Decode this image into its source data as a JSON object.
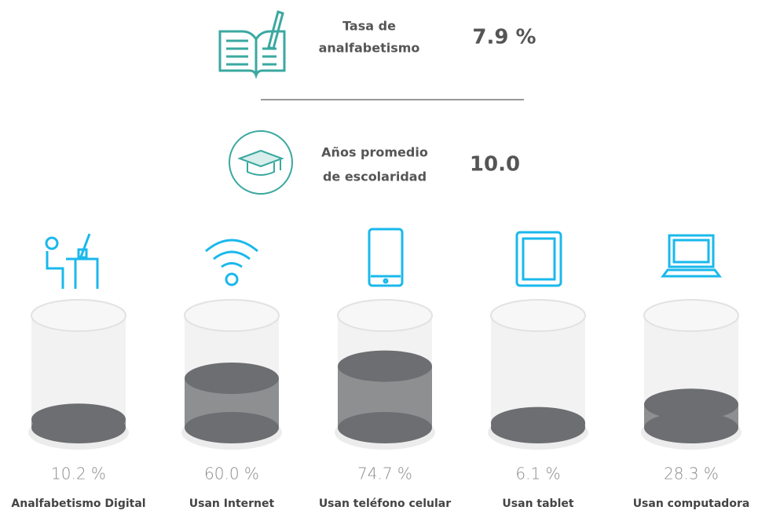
{
  "stats": [
    {
      "label_lines": [
        "Tasa de",
        "analfabetismo"
      ],
      "value": "7.9 %"
    },
    {
      "label_lines": [
        "Años promedio",
        "de escolaridad"
      ],
      "value": "10.0"
    }
  ],
  "chart_data": {
    "type": "cylinder",
    "categories": [
      "Analfabetismo Digital",
      "Usan Internet",
      "Usan teléfono celular",
      "Usan tablet",
      "Usan computadora"
    ],
    "values": [
      10.2,
      60.0,
      74.7,
      6.1,
      28.3
    ],
    "value_labels": [
      "10.2 %",
      "60.0 %",
      "74.7 %",
      "6.1 %",
      "28.3 %"
    ],
    "ylim": [
      0,
      100
    ],
    "color": "#6d6e71"
  }
}
